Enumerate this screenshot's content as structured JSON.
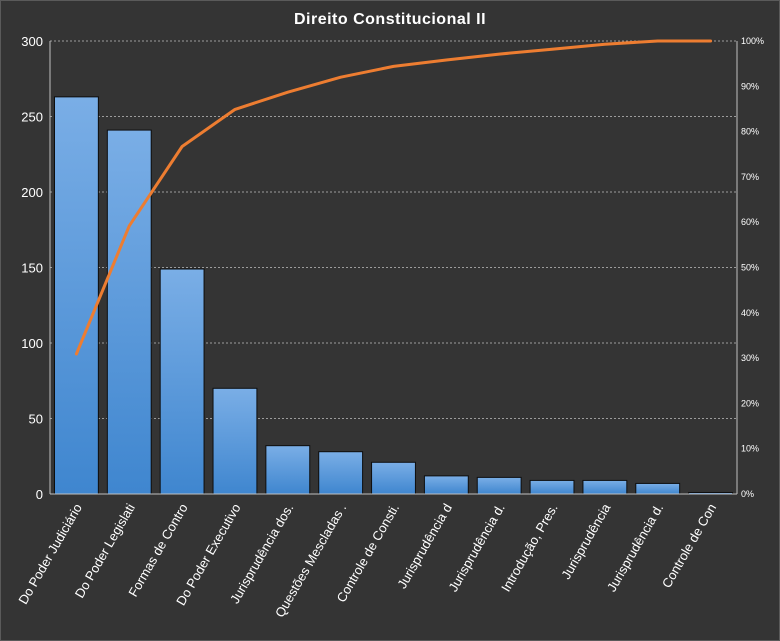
{
  "chart_data": {
    "type": "bar",
    "title": "Direito  Constitucional  II",
    "categories": [
      "Do Poder Judiciário",
      "Do Poder Legislati",
      "Formas de Contro",
      "Do Poder Executivo",
      "Jurisprudência dos.",
      "Questões Mescladas .",
      "Controle de Consti.",
      "Jurisprudência d",
      "Jurisprudência d.",
      "Introdução, Pres.",
      "Jurisprudência",
      "Jurisprudência d.",
      "Controle de Con"
    ],
    "series": [
      {
        "type": "bar",
        "values": [
          263,
          241,
          149,
          70,
          32,
          28,
          21,
          12,
          11,
          9,
          9,
          7,
          1
        ]
      },
      {
        "type": "line",
        "axis": "secondary",
        "values": [
          30.9,
          59.2,
          76.7,
          84.9,
          88.7,
          92.0,
          94.4,
          95.8,
          97.1,
          98.2,
          99.3,
          100.0,
          100.0
        ]
      }
    ],
    "ylim": [
      0,
      300
    ],
    "yticks": [
      "0",
      "50",
      "100",
      "150",
      "200",
      "250",
      "300"
    ],
    "y2lim": [
      0,
      100
    ],
    "y2ticks": [
      "0%",
      "10%",
      "20%",
      "30%",
      "40%",
      "50%",
      "60%",
      "70%",
      "80%",
      "90%",
      "100%"
    ],
    "grid": true,
    "legend": "none",
    "colors": {
      "bar_top": "#7aaee6",
      "bar_bottom": "#3f86cf",
      "line": "#ed7d31",
      "background": "#343434",
      "grid": "#bfbfbf"
    }
  }
}
